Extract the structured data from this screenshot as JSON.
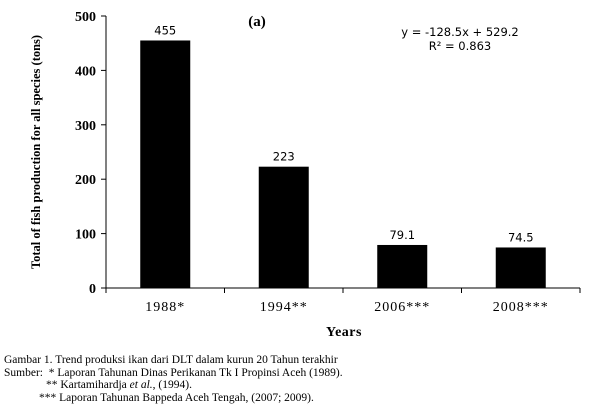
{
  "chart_data": {
    "type": "bar",
    "panel_label": "(a)",
    "categories": [
      "1988*",
      "1994**",
      "2006***",
      "2008***"
    ],
    "values": [
      455,
      223,
      79.1,
      74.5
    ],
    "data_labels": [
      "455",
      "223",
      "79.1",
      "74.5"
    ],
    "xlabel": "Years",
    "ylabel": "Total of fish production for all species (tons)",
    "ylim": [
      0,
      500
    ],
    "yticks": [
      "0",
      "100",
      "200",
      "300",
      "400",
      "500"
    ],
    "annotation_line1": "y = -128.5x + 529.2",
    "annotation_line2": "R² = 0.863",
    "grid": false,
    "bar_color": "#000000"
  },
  "caption": {
    "title": "Gambar 1. Trend produksi ikan dari DLT dalam kurun 20 Tahun terakhir",
    "source_prefix": "Sumber:",
    "source1": "* Laporan Tahunan Dinas Perikanan Tk I Propinsi Aceh (1989).",
    "source2_prefix": "** Kartamihardja",
    "source2_etal": "et al.",
    "source2_suffix": ", (1994).",
    "source3": "*** Laporan Tahunan Bappeda Aceh Tengah,  (2007; 2009)."
  }
}
